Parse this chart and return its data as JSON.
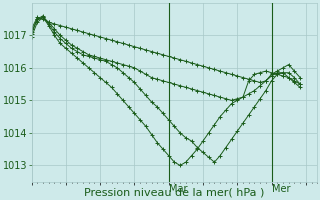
{
  "xlabel": "Pression niveau de la mer( hPa )",
  "bg_color": "#ceeaea",
  "grid_color": "#a8c8c8",
  "line_color": "#1a5c1a",
  "yticks": [
    1013,
    1014,
    1015,
    1016,
    1017
  ],
  "ylim": [
    1012.5,
    1018.0
  ],
  "xlim": [
    0,
    50
  ],
  "vlines_x": [
    24,
    42
  ],
  "vline_labels": [
    "Mar",
    "Mer"
  ],
  "series": [
    [
      1017.2,
      1017.55,
      1017.5,
      1017.4,
      1017.35,
      1017.3,
      1017.25,
      1017.2,
      1017.15,
      1017.1,
      1017.05,
      1017.0,
      1016.95,
      1016.9,
      1016.85,
      1016.8,
      1016.75,
      1016.7,
      1016.65,
      1016.6,
      1016.55,
      1016.5,
      1016.45,
      1016.4,
      1016.35,
      1016.3,
      1016.25,
      1016.2,
      1016.15,
      1016.1,
      1016.05,
      1016.0,
      1015.95,
      1015.9,
      1015.85,
      1015.8,
      1015.75,
      1015.7,
      1015.65,
      1015.6,
      1015.55,
      1015.6,
      1015.8,
      1015.9,
      1016.0,
      1016.1,
      1015.9,
      1015.7
    ],
    [
      1017.1,
      1017.5,
      1017.55,
      1017.4,
      1017.2,
      1017.0,
      1016.85,
      1016.7,
      1016.6,
      1016.5,
      1016.4,
      1016.35,
      1016.3,
      1016.25,
      1016.2,
      1016.15,
      1016.1,
      1016.05,
      1016.0,
      1015.9,
      1015.8,
      1015.7,
      1015.65,
      1015.6,
      1015.55,
      1015.5,
      1015.45,
      1015.4,
      1015.35,
      1015.3,
      1015.25,
      1015.2,
      1015.15,
      1015.1,
      1015.05,
      1015.0,
      1015.05,
      1015.1,
      1015.6,
      1015.8,
      1015.85,
      1015.9,
      1015.85,
      1015.8,
      1015.75,
      1015.7,
      1015.6,
      1015.5
    ],
    [
      1017.05,
      1017.5,
      1017.6,
      1017.35,
      1017.1,
      1016.9,
      1016.75,
      1016.6,
      1016.5,
      1016.4,
      1016.35,
      1016.3,
      1016.25,
      1016.2,
      1016.1,
      1016.0,
      1015.85,
      1015.7,
      1015.55,
      1015.35,
      1015.15,
      1014.95,
      1014.8,
      1014.6,
      1014.4,
      1014.2,
      1014.0,
      1013.85,
      1013.75,
      1013.55,
      1013.4,
      1013.25,
      1013.1,
      1013.3,
      1013.55,
      1013.8,
      1014.05,
      1014.3,
      1014.55,
      1014.8,
      1015.05,
      1015.3,
      1015.6,
      1015.8,
      1015.85,
      1015.85,
      1015.7,
      1015.5
    ],
    [
      1016.95,
      1017.4,
      1017.55,
      1017.3,
      1017.0,
      1016.75,
      1016.6,
      1016.45,
      1016.3,
      1016.15,
      1016.0,
      1015.85,
      1015.7,
      1015.55,
      1015.4,
      1015.2,
      1015.0,
      1014.8,
      1014.6,
      1014.4,
      1014.2,
      1013.95,
      1013.7,
      1013.5,
      1013.3,
      1013.1,
      1013.0,
      1013.1,
      1013.3,
      1013.5,
      1013.75,
      1014.0,
      1014.25,
      1014.5,
      1014.7,
      1014.9,
      1015.0,
      1015.1,
      1015.2,
      1015.3,
      1015.45,
      1015.6,
      1015.75,
      1015.85,
      1015.85,
      1015.7,
      1015.55,
      1015.4
    ]
  ],
  "xlabel_fontsize": 8,
  "tick_fontsize": 7,
  "vline_fontsize": 7,
  "tick_color": "#1a5c1a"
}
